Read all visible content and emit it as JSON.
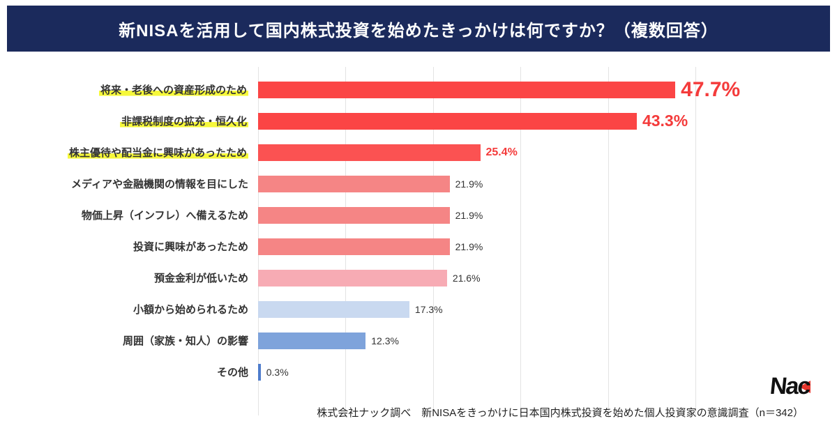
{
  "header": {
    "title": "新NISAを活用して国内株式投資を始めたきっかけは何ですか？（複数回答）",
    "background_color": "#1b2a5c",
    "text_color": "#ffffff"
  },
  "chart_data": {
    "type": "bar",
    "orientation": "horizontal",
    "title": "新NISAを活用して国内株式投資を始めたきっかけは何ですか？（複数回答）",
    "unit": "%",
    "xlim": [
      0,
      63
    ],
    "grid": {
      "visible": true,
      "step_percent": 10,
      "line_count": 6,
      "color": "#e3e3e3"
    },
    "legend": "none",
    "categories": [
      "将来・老後への資産形成のため",
      "非課税制度の拡充・恒久化",
      "株主優待や配当金に興味があったため",
      "メディアや金融機関の情報を目にした",
      "物価上昇（インフレ）へ備えるため",
      "投資に興味があったため",
      "預金金利が低いため",
      "小額から始められるため",
      "周囲（家族・知人）の影響",
      "その他"
    ],
    "values": [
      47.7,
      43.3,
      25.4,
      21.9,
      21.9,
      21.9,
      21.6,
      17.3,
      12.3,
      0.3
    ],
    "items": [
      {
        "label": "将来・老後への資産形成のため",
        "value": 47.7,
        "value_text": "47.7%",
        "color": "#fb4545",
        "highlight": true,
        "value_style": "xl"
      },
      {
        "label": "非課税制度の拡充・恒久化",
        "value": 43.3,
        "value_text": "43.3%",
        "color": "#fb4545",
        "highlight": true,
        "value_style": "lg"
      },
      {
        "label": "株主優待や配当金に興味があったため",
        "value": 25.4,
        "value_text": "25.4%",
        "color": "#fb5252",
        "highlight": true,
        "value_style": "md"
      },
      {
        "label": "メディアや金融機関の情報を目にした",
        "value": 21.9,
        "value_text": "21.9%",
        "color": "#f58585",
        "highlight": false,
        "value_style": ""
      },
      {
        "label": "物価上昇（インフレ）へ備えるため",
        "value": 21.9,
        "value_text": "21.9%",
        "color": "#f58585",
        "highlight": false,
        "value_style": ""
      },
      {
        "label": "投資に興味があったため",
        "value": 21.9,
        "value_text": "21.9%",
        "color": "#f58585",
        "highlight": false,
        "value_style": ""
      },
      {
        "label": "預金金利が低いため",
        "value": 21.6,
        "value_text": "21.6%",
        "color": "#f7abb4",
        "highlight": false,
        "value_style": ""
      },
      {
        "label": "小額から始められるため",
        "value": 17.3,
        "value_text": "17.3%",
        "color": "#c9d9f0",
        "highlight": false,
        "value_style": ""
      },
      {
        "label": "周囲（家族・知人）の影響",
        "value": 12.3,
        "value_text": "12.3%",
        "color": "#7ea3db",
        "highlight": false,
        "value_style": ""
      },
      {
        "label": "その他",
        "value": 0.3,
        "value_text": "0.3%",
        "color": "#4e7ccc",
        "highlight": false,
        "value_style": ""
      }
    ],
    "highlight_color": "#f6f83a",
    "value_accent_color": "#f43b3b"
  },
  "footer": {
    "note": "株式会社ナック調べ　新NISAをきっかけに日本国内株式投資を始めた個人投資家の意識調査（n＝342）"
  },
  "logo": {
    "text": "Nac",
    "accent_color": "#e8362d"
  }
}
